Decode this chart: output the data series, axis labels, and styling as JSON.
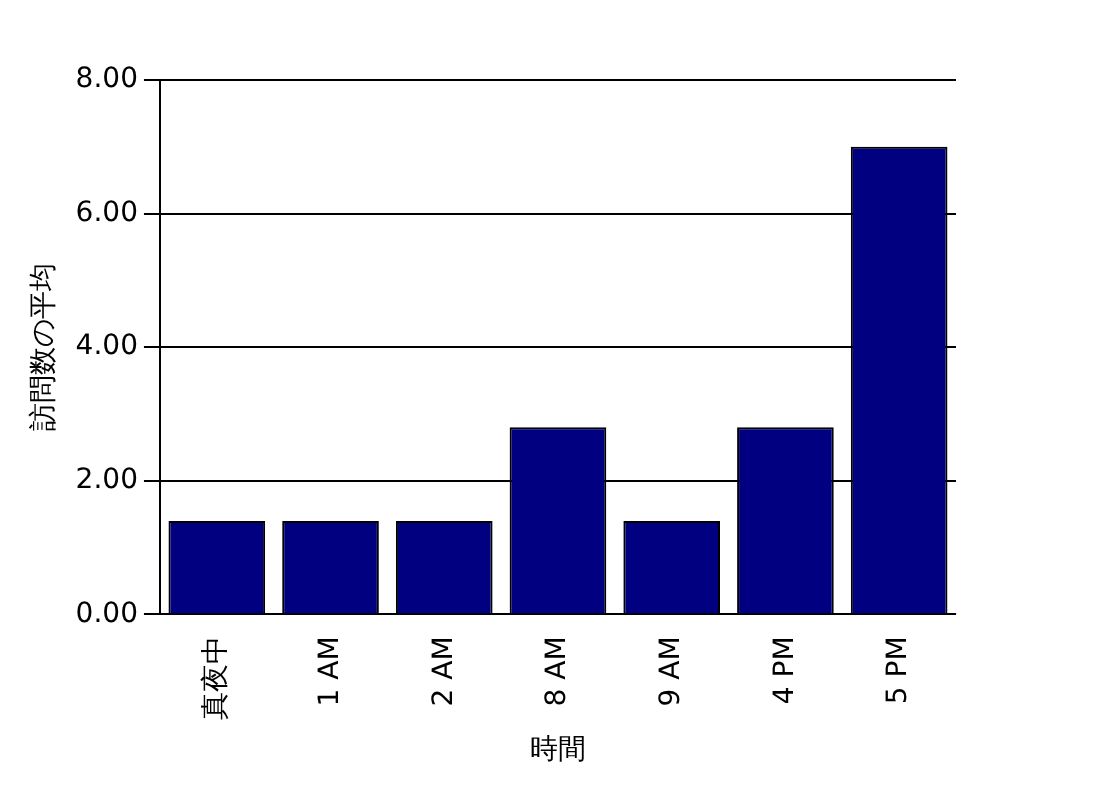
{
  "chart_data": {
    "type": "bar",
    "xlabel": "時間",
    "ylabel": "訪問数の平均",
    "categories": [
      "真夜中",
      "1 AM",
      "2 AM",
      "8 AM",
      "9 AM",
      "4 PM",
      "5 PM"
    ],
    "values": [
      1.4,
      1.4,
      1.4,
      2.8,
      1.4,
      2.8,
      7.0
    ],
    "color": "#000080",
    "ylim": [
      0,
      8
    ],
    "yticks": [
      {
        "value": 0,
        "label": "0.00"
      },
      {
        "value": 2,
        "label": "2.00"
      },
      {
        "value": 4,
        "label": "4.00"
      },
      {
        "value": 6,
        "label": "6.00"
      },
      {
        "value": 8,
        "label": "8.00"
      }
    ],
    "grid": "y",
    "legend": false
  }
}
